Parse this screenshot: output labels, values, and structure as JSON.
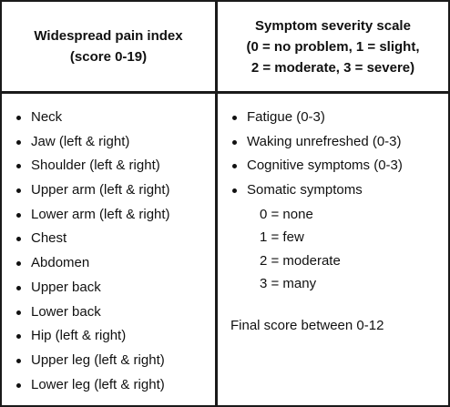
{
  "header": {
    "left_line1": "Widespread pain index",
    "left_line2": "(score 0-19)",
    "right_line1": "Symptom severity scale",
    "right_line2": "(0 = no problem, 1 = slight,",
    "right_line3": "2 = moderate, 3 = severe)"
  },
  "pain_index_items": [
    "Neck",
    "Jaw (left & right)",
    "Shoulder (left & right)",
    "Upper arm (left & right)",
    "Lower arm (left & right)",
    "Chest",
    "Abdomen",
    "Upper back",
    "Lower back",
    "Hip (left & right)",
    "Upper leg (left & right)",
    "Lower leg (left & right)"
  ],
  "severity_items": [
    "Fatigue (0-3)",
    "Waking unrefreshed (0-3)",
    "Cognitive symptoms (0-3)",
    "Somatic symptoms"
  ],
  "somatic_levels": [
    "0 = none",
    "1 = few",
    "2 = moderate",
    "3 = many"
  ],
  "final_score": "Final score between 0-12"
}
